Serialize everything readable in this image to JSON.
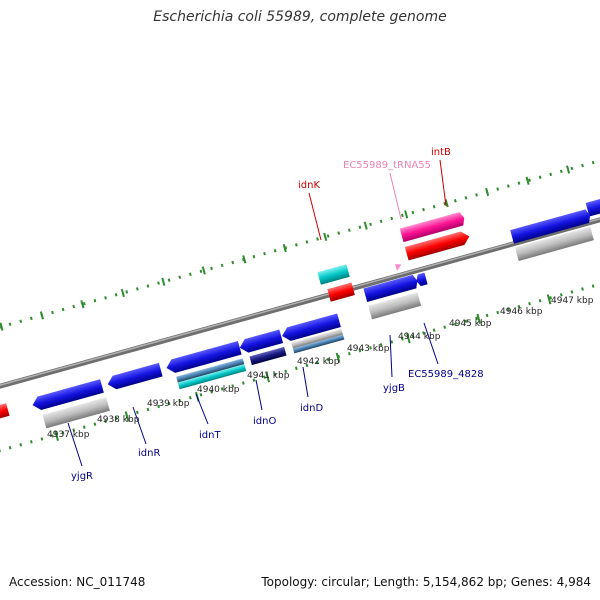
{
  "title": "Escherichia coli 55989, complete genome",
  "footer": {
    "accession": "Accession: NC_011748",
    "summary": "Topology: circular; Length: 5,154,862 bp; Genes: 4,984"
  },
  "colors": {
    "backbone": "#888888",
    "tick": "#2e8b2e",
    "blue_gene": "#1414e0",
    "cds_grey": "#b4b4b4",
    "cyan": "#00c8c8",
    "red": "#ff0000",
    "pink": "#ff1493",
    "label_blue": "#00008b",
    "label_red": "#cc0000",
    "label_pink": "#ee82b4"
  },
  "kbp_labels": [
    "4937 kbp",
    "4938 kbp",
    "4939 kbp",
    "4940 kbp",
    "4941 kbp",
    "4942 kbp",
    "4943 kbp",
    "4944 kbp",
    "4945 kbp",
    "4946 kbp",
    "4947 kbp"
  ],
  "gene_labels": [
    "yjgR",
    "idnR",
    "idnT",
    "idnO",
    "idnD",
    "yjgB",
    "EC55989_4828",
    "idnK",
    "EC55989_tRNA55",
    "intB"
  ]
}
